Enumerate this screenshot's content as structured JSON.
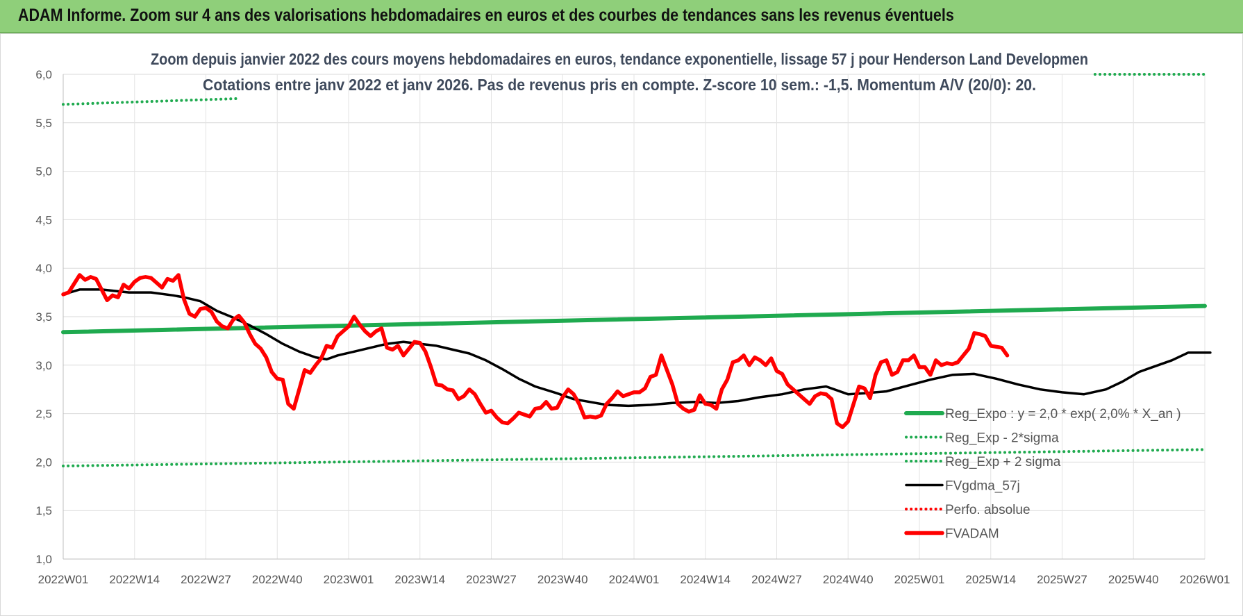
{
  "banner": {
    "title": "ADAM Informe. Zoom sur 4 ans des valorisations hebdomadaires en euros et des courbes de tendances sans les revenus éventuels"
  },
  "chart_data": {
    "type": "line",
    "title_line1": "Zoom depuis janvier 2022 des cours moyens hebdomadaires en euros, tendance exponentielle, lissage 57 j pour Henderson Land Developmen",
    "title_line2": "Cotations entre janv 2022 et janv 2026. Pas de revenus pris en compte. Z-score 10 sem.: -1,5. Momentum A/V (20/0): 20.",
    "ylim": [
      1.0,
      6.0
    ],
    "y_ticks": [
      "1,0",
      "1,5",
      "2,0",
      "2,5",
      "3,0",
      "3,5",
      "4,0",
      "4,5",
      "5,0",
      "5,5",
      "6,0"
    ],
    "x_ticks": [
      "2022W01",
      "2022W14",
      "2022W27",
      "2022W40",
      "2023W01",
      "2023W14",
      "2023W27",
      "2023W40",
      "2024W01",
      "2024W14",
      "2024W27",
      "2024W40",
      "2025W01",
      "2025W14",
      "2025W27",
      "2025W40",
      "2026W01"
    ],
    "grid": true,
    "legend_position": "bottom-right",
    "series": [
      {
        "name": "Reg_Expo : y = 2,0 * exp( 2,0% *  X_an )",
        "color": "#1faa4f",
        "style": "solid",
        "points": [
          [
            0,
            3.34
          ],
          [
            208,
            3.61
          ]
        ]
      },
      {
        "name": "Reg_Exp - 2*sigma",
        "color": "#1faa4f",
        "style": "dotted",
        "points": [
          [
            0,
            1.96
          ],
          [
            208,
            2.13
          ]
        ]
      },
      {
        "name": "Reg_Exp + 2 sigma",
        "color": "#1faa4f",
        "style": "dotted",
        "segments": [
          [
            [
              0,
              5.69
            ],
            [
              32,
              5.75
            ]
          ],
          [
            [
              188,
              6.0
            ],
            [
              208,
              6.0
            ]
          ]
        ]
      },
      {
        "name": "FVgdma_57j",
        "color": "#000000",
        "style": "solid",
        "points": [
          [
            0,
            3.73
          ],
          [
            3,
            3.78
          ],
          [
            7,
            3.78
          ],
          [
            12,
            3.75
          ],
          [
            16,
            3.75
          ],
          [
            20,
            3.72
          ],
          [
            22,
            3.7
          ],
          [
            25,
            3.66
          ],
          [
            28,
            3.56
          ],
          [
            31,
            3.49
          ],
          [
            34,
            3.41
          ],
          [
            37,
            3.32
          ],
          [
            40,
            3.22
          ],
          [
            43,
            3.14
          ],
          [
            46,
            3.08
          ],
          [
            48,
            3.06
          ],
          [
            50,
            3.1
          ],
          [
            53,
            3.14
          ],
          [
            56,
            3.18
          ],
          [
            59,
            3.22
          ],
          [
            62,
            3.24
          ],
          [
            65,
            3.22
          ],
          [
            68,
            3.2
          ],
          [
            71,
            3.16
          ],
          [
            74,
            3.12
          ],
          [
            77,
            3.05
          ],
          [
            80,
            2.96
          ],
          [
            83,
            2.86
          ],
          [
            86,
            2.78
          ],
          [
            90,
            2.71
          ],
          [
            93,
            2.65
          ],
          [
            96,
            2.62
          ],
          [
            99,
            2.59
          ],
          [
            103,
            2.58
          ],
          [
            107,
            2.59
          ],
          [
            111,
            2.61
          ],
          [
            115,
            2.62
          ],
          [
            119,
            2.61
          ],
          [
            123,
            2.63
          ],
          [
            127,
            2.67
          ],
          [
            131,
            2.7
          ],
          [
            135,
            2.75
          ],
          [
            139,
            2.78
          ],
          [
            143,
            2.7
          ],
          [
            146,
            2.71
          ],
          [
            150,
            2.73
          ],
          [
            154,
            2.79
          ],
          [
            158,
            2.85
          ],
          [
            162,
            2.9
          ],
          [
            166,
            2.91
          ],
          [
            170,
            2.86
          ],
          [
            174,
            2.8
          ],
          [
            178,
            2.75
          ],
          [
            182,
            2.72
          ],
          [
            186,
            2.7
          ],
          [
            190,
            2.75
          ],
          [
            193,
            2.83
          ],
          [
            196,
            2.93
          ],
          [
            199,
            2.99
          ],
          [
            202,
            3.05
          ],
          [
            205,
            3.13
          ],
          [
            208,
            3.13
          ],
          [
            209,
            3.13
          ]
        ]
      },
      {
        "name": "Perfo. absolue",
        "color": "#ff0000",
        "style": "dotted",
        "points": []
      },
      {
        "name": "FVADAM",
        "color": "#ff0000",
        "style": "solid",
        "points": [
          [
            0,
            3.73
          ],
          [
            1,
            3.75
          ],
          [
            2,
            3.84
          ],
          [
            3,
            3.93
          ],
          [
            4,
            3.88
          ],
          [
            5,
            3.91
          ],
          [
            6,
            3.89
          ],
          [
            7,
            3.78
          ],
          [
            8,
            3.67
          ],
          [
            9,
            3.72
          ],
          [
            10,
            3.7
          ],
          [
            11,
            3.83
          ],
          [
            12,
            3.79
          ],
          [
            13,
            3.86
          ],
          [
            14,
            3.9
          ],
          [
            15,
            3.91
          ],
          [
            16,
            3.9
          ],
          [
            17,
            3.85
          ],
          [
            18,
            3.8
          ],
          [
            19,
            3.89
          ],
          [
            20,
            3.87
          ],
          [
            21,
            3.93
          ],
          [
            22,
            3.68
          ],
          [
            23,
            3.53
          ],
          [
            24,
            3.5
          ],
          [
            25,
            3.58
          ],
          [
            26,
            3.59
          ],
          [
            27,
            3.55
          ],
          [
            28,
            3.45
          ],
          [
            29,
            3.4
          ],
          [
            30,
            3.38
          ],
          [
            31,
            3.47
          ],
          [
            32,
            3.51
          ],
          [
            33,
            3.44
          ],
          [
            34,
            3.32
          ],
          [
            35,
            3.22
          ],
          [
            36,
            3.17
          ],
          [
            37,
            3.08
          ],
          [
            38,
            2.93
          ],
          [
            39,
            2.86
          ],
          [
            40,
            2.85
          ],
          [
            41,
            2.6
          ],
          [
            42,
            2.55
          ],
          [
            43,
            2.75
          ],
          [
            44,
            2.95
          ],
          [
            45,
            2.92
          ],
          [
            46,
            3.0
          ],
          [
            47,
            3.07
          ],
          [
            48,
            3.2
          ],
          [
            49,
            3.18
          ],
          [
            50,
            3.3
          ],
          [
            51,
            3.35
          ],
          [
            52,
            3.4
          ],
          [
            53,
            3.5
          ],
          [
            54,
            3.42
          ],
          [
            55,
            3.35
          ],
          [
            56,
            3.3
          ],
          [
            57,
            3.35
          ],
          [
            58,
            3.38
          ],
          [
            59,
            3.18
          ],
          [
            60,
            3.16
          ],
          [
            61,
            3.2
          ],
          [
            62,
            3.1
          ],
          [
            63,
            3.17
          ],
          [
            64,
            3.24
          ],
          [
            65,
            3.23
          ],
          [
            66,
            3.14
          ],
          [
            67,
            2.98
          ],
          [
            68,
            2.8
          ],
          [
            69,
            2.79
          ],
          [
            70,
            2.75
          ],
          [
            71,
            2.74
          ],
          [
            72,
            2.65
          ],
          [
            73,
            2.68
          ],
          [
            74,
            2.75
          ],
          [
            75,
            2.7
          ],
          [
            76,
            2.6
          ],
          [
            77,
            2.51
          ],
          [
            78,
            2.53
          ],
          [
            79,
            2.46
          ],
          [
            80,
            2.41
          ],
          [
            81,
            2.4
          ],
          [
            82,
            2.45
          ],
          [
            83,
            2.51
          ],
          [
            84,
            2.49
          ],
          [
            85,
            2.47
          ],
          [
            86,
            2.55
          ],
          [
            87,
            2.56
          ],
          [
            88,
            2.62
          ],
          [
            89,
            2.55
          ],
          [
            90,
            2.56
          ],
          [
            91,
            2.67
          ],
          [
            92,
            2.75
          ],
          [
            93,
            2.7
          ],
          [
            94,
            2.6
          ],
          [
            95,
            2.46
          ],
          [
            96,
            2.47
          ],
          [
            97,
            2.46
          ],
          [
            98,
            2.48
          ],
          [
            99,
            2.6
          ],
          [
            100,
            2.66
          ],
          [
            101,
            2.73
          ],
          [
            102,
            2.68
          ],
          [
            103,
            2.7
          ],
          [
            104,
            2.72
          ],
          [
            105,
            2.72
          ],
          [
            106,
            2.76
          ],
          [
            107,
            2.88
          ],
          [
            108,
            2.9
          ],
          [
            109,
            3.1
          ],
          [
            110,
            2.95
          ],
          [
            111,
            2.8
          ],
          [
            112,
            2.6
          ],
          [
            113,
            2.55
          ],
          [
            114,
            2.52
          ],
          [
            115,
            2.54
          ],
          [
            116,
            2.69
          ],
          [
            117,
            2.6
          ],
          [
            118,
            2.59
          ],
          [
            119,
            2.55
          ],
          [
            120,
            2.75
          ],
          [
            121,
            2.85
          ],
          [
            122,
            3.03
          ],
          [
            123,
            3.05
          ],
          [
            124,
            3.1
          ],
          [
            125,
            3.0
          ],
          [
            126,
            3.08
          ],
          [
            127,
            3.05
          ],
          [
            128,
            3.0
          ],
          [
            129,
            3.07
          ],
          [
            130,
            2.94
          ],
          [
            131,
            2.91
          ],
          [
            132,
            2.8
          ],
          [
            133,
            2.75
          ],
          [
            134,
            2.7
          ],
          [
            135,
            2.65
          ],
          [
            136,
            2.6
          ],
          [
            137,
            2.68
          ],
          [
            138,
            2.71
          ],
          [
            139,
            2.7
          ],
          [
            140,
            2.65
          ],
          [
            141,
            2.4
          ],
          [
            142,
            2.36
          ],
          [
            143,
            2.42
          ],
          [
            144,
            2.6
          ],
          [
            145,
            2.78
          ],
          [
            146,
            2.76
          ],
          [
            147,
            2.66
          ],
          [
            148,
            2.9
          ],
          [
            149,
            3.03
          ],
          [
            150,
            3.05
          ],
          [
            151,
            2.9
          ],
          [
            152,
            2.93
          ],
          [
            153,
            3.05
          ],
          [
            154,
            3.05
          ],
          [
            155,
            3.1
          ],
          [
            156,
            2.98
          ],
          [
            157,
            2.98
          ],
          [
            158,
            2.9
          ],
          [
            159,
            3.05
          ],
          [
            160,
            3.0
          ],
          [
            161,
            3.02
          ],
          [
            162,
            3.01
          ],
          [
            163,
            3.03
          ],
          [
            164,
            3.1
          ],
          [
            165,
            3.17
          ],
          [
            166,
            3.33
          ],
          [
            167,
            3.32
          ],
          [
            168,
            3.3
          ],
          [
            169,
            3.2
          ],
          [
            170,
            3.19
          ],
          [
            171,
            3.18
          ],
          [
            172,
            3.1
          ]
        ]
      }
    ]
  }
}
